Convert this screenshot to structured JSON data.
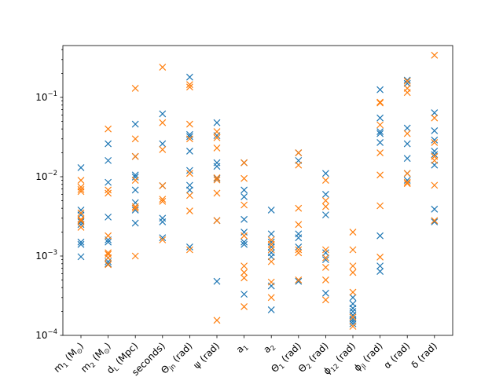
{
  "chart_data": {
    "type": "scatter",
    "yscale": "log",
    "ylim": [
      0.0001,
      0.45
    ],
    "grid": false,
    "legend": "none",
    "colors": [
      "#1f77b4",
      "#ff7f0e"
    ],
    "categories": [
      "m₁ (M⊙)",
      "m₂ (M⊙)",
      "d_L (Mpc)",
      "seconds)",
      "Θ_jn (rad)",
      "ψ (rad)",
      "a₁",
      "a₂",
      "Θ₁ (rad)",
      "Θ₂ (rad)",
      "ϕ₁₂ (rad)",
      "ϕ_jl (rad)",
      "α (rad)",
      "δ (rad)"
    ],
    "category_labels": [
      {
        "main": "m",
        "sub": "1",
        "tail": " (M",
        "odot": true
      },
      {
        "main": "m",
        "sub": "2",
        "tail": " (M",
        "odot": true
      },
      {
        "main": "d",
        "sub": "L",
        "tail": " (Mpc)",
        "odot": false
      },
      {
        "main": "seconds)",
        "sub": "",
        "tail": "",
        "odot": false
      },
      {
        "main": "Θ",
        "sub": "jn",
        "tail": " (rad)",
        "odot": false
      },
      {
        "main": "ψ",
        "sub": "",
        "tail": " (rad)",
        "odot": false
      },
      {
        "main": "a",
        "sub": "1",
        "tail": "",
        "odot": false
      },
      {
        "main": "a",
        "sub": "2",
        "tail": "",
        "odot": false
      },
      {
        "main": "Θ",
        "sub": "1",
        "tail": " (rad)",
        "odot": false
      },
      {
        "main": "Θ",
        "sub": "2",
        "tail": " (rad)",
        "odot": false
      },
      {
        "main": "ϕ",
        "sub": "12",
        "tail": " (rad)",
        "odot": false
      },
      {
        "main": "ϕ",
        "sub": "jl",
        "tail": " (rad)",
        "odot": false
      },
      {
        "main": "α",
        "sub": "",
        "tail": " (rad)",
        "odot": false
      },
      {
        "main": "δ",
        "sub": "",
        "tail": " (rad)",
        "odot": false
      }
    ],
    "y_ticks": [
      {
        "value": 0.0001,
        "base": "10",
        "exp": "−4"
      },
      {
        "value": 0.001,
        "base": "10",
        "exp": "−3"
      },
      {
        "value": 0.01,
        "base": "10",
        "exp": "−2"
      },
      {
        "value": 0.1,
        "base": "10",
        "exp": "−1"
      }
    ],
    "series": [
      {
        "color": "#1f77b4",
        "values": [
          [
            0.013,
            0.0038,
            0.0033,
            0.0027,
            0.0025,
            0.0015,
            0.0014,
            0.00098
          ],
          [
            0.026,
            0.016,
            0.0085,
            0.0031,
            0.0016,
            0.0015,
            0.00095,
            0.00085,
            0.0008
          ],
          [
            0.046,
            0.018,
            0.0105,
            0.0099,
            0.0068,
            0.0047,
            0.0038,
            0.0026
          ],
          [
            0.062,
            0.026,
            0.0077,
            0.003,
            0.0027,
            0.0017
          ],
          [
            0.18,
            0.034,
            0.032,
            0.021,
            0.012,
            0.0078,
            0.0068,
            0.0013
          ],
          [
            0.048,
            0.033,
            0.015,
            0.0135,
            0.0095,
            0.0028,
            0.00048
          ],
          [
            0.015,
            0.0068,
            0.0056,
            0.0029,
            0.002,
            0.0015,
            0.0014,
            0.00033
          ],
          [
            0.0038,
            0.0019,
            0.0015,
            0.0013,
            0.0011,
            0.00098,
            0.00042,
            0.00021
          ],
          [
            0.02,
            0.016,
            0.0019,
            0.0017,
            0.0013,
            0.00048
          ],
          [
            0.011,
            0.006,
            0.0033,
            0.0011,
            0.0009,
            0.00034
          ],
          [
            0.0003,
            0.00025,
            0.00022,
            0.0002,
            0.00018,
            0.00016,
            0.00015,
            0.00014
          ],
          [
            0.125,
            0.055,
            0.037,
            0.035,
            0.027,
            0.0018,
            0.00075,
            0.00064
          ],
          [
            0.165,
            0.15,
            0.041,
            0.026,
            0.017,
            0.011,
            0.009
          ],
          [
            0.064,
            0.038,
            0.029,
            0.021,
            0.019,
            0.014,
            0.0039,
            0.0027
          ]
        ]
      },
      {
        "color": "#ff7f0e",
        "values": [
          [
            0.009,
            0.0074,
            0.0069,
            0.0065,
            0.0035,
            0.0029,
            0.0028,
            0.0023
          ],
          [
            0.04,
            0.0068,
            0.0062,
            0.0018,
            0.0011,
            0.00105,
            0.00095,
            0.00078
          ],
          [
            0.13,
            0.03,
            0.018,
            0.009,
            0.0042,
            0.004,
            0.001
          ],
          [
            0.24,
            0.048,
            0.022,
            0.0077,
            0.0052,
            0.0049,
            0.0016
          ],
          [
            0.145,
            0.135,
            0.046,
            0.03,
            0.011,
            0.0058,
            0.0037,
            0.0012
          ],
          [
            0.037,
            0.031,
            0.023,
            0.0097,
            0.0091,
            0.0062,
            0.0028,
            0.000155
          ],
          [
            0.015,
            0.0095,
            0.0044,
            0.0018,
            0.00075,
            0.00062,
            0.00053,
            0.00023
          ],
          [
            0.0016,
            0.0014,
            0.0012,
            0.00085,
            0.00047,
            0.0003
          ],
          [
            0.02,
            0.014,
            0.004,
            0.0025,
            0.0012,
            0.0011,
            0.0005
          ],
          [
            0.009,
            0.005,
            0.0042,
            0.0012,
            0.00095,
            0.00072,
            0.0005,
            0.00028
          ],
          [
            0.002,
            0.0012,
            0.00075,
            0.00062,
            0.00035,
            0.00017,
            0.00013
          ],
          [
            0.087,
            0.085,
            0.045,
            0.02,
            0.0105,
            0.0043,
            0.00097
          ],
          [
            0.16,
            0.13,
            0.115,
            0.035,
            0.011,
            0.0085,
            0.0082
          ],
          [
            0.34,
            0.055,
            0.027,
            0.018,
            0.016,
            0.0078,
            0.0028
          ]
        ]
      }
    ]
  }
}
